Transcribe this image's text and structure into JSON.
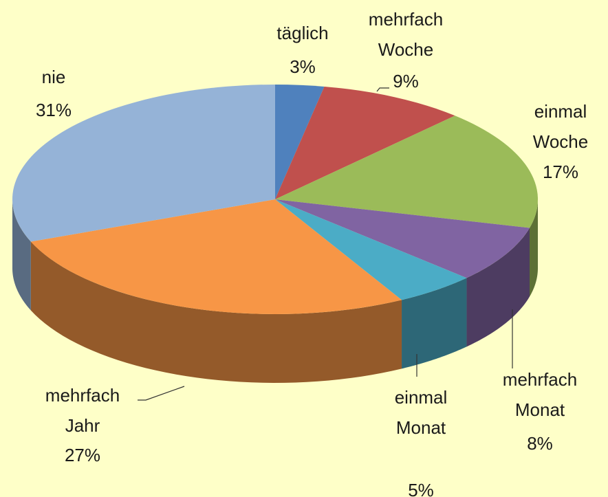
{
  "chart_data": {
    "type": "pie",
    "categories": [
      "täglich",
      "mehrfach Woche",
      "einmal Woche",
      "mehrfach Monat",
      "einmal Monat",
      "mehrfach Jahr",
      "nie"
    ],
    "values": [
      3,
      9,
      17,
      8,
      5,
      27,
      31
    ],
    "value_labels": [
      "3%",
      "9%",
      "17%",
      "8%",
      "5%",
      "27%",
      "31%"
    ],
    "colors": [
      "#4f81bd",
      "#c0504d",
      "#9bbb59",
      "#8064a2",
      "#4bacc6",
      "#f79646",
      "#95b3d7"
    ]
  }
}
